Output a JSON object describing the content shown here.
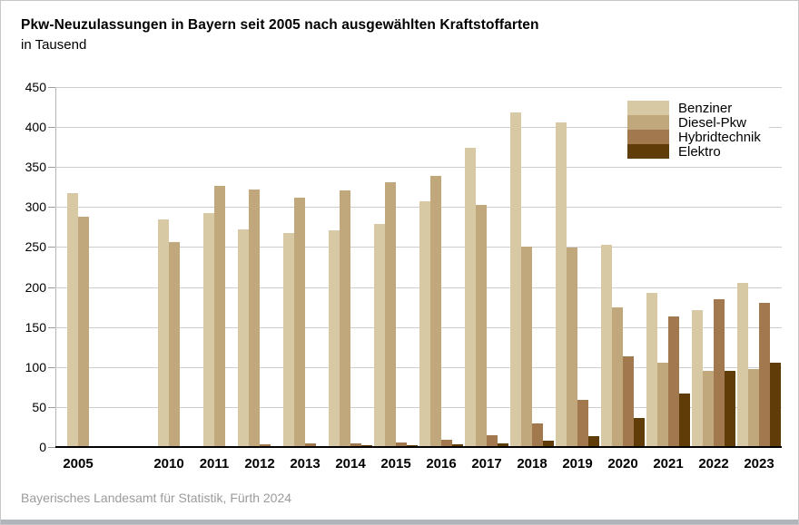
{
  "header": {
    "title": "Pkw-Neuzulassungen in Bayern seit 2005 nach ausgewählten Kraftstoffarten",
    "subtitle": "in Tausend"
  },
  "footer": {
    "source": "Bayerisches Landesamt für Statistik, Fürth 2024"
  },
  "chart_data": {
    "type": "bar",
    "title": "Pkw-Neuzulassungen in Bayern seit 2005 nach ausgewählten Kraftstoffarten",
    "subtitle": "in Tausend",
    "unit": "Tausend",
    "ylim": [
      0,
      450
    ],
    "ytick_step": 50,
    "grid": true,
    "legend_position": "top-right",
    "categories": [
      "2005",
      "2010",
      "2011",
      "2012",
      "2013",
      "2014",
      "2015",
      "2016",
      "2017",
      "2018",
      "2019",
      "2020",
      "2021",
      "2022",
      "2023"
    ],
    "category_slots": [
      0,
      2,
      3,
      4,
      5,
      6,
      7,
      8,
      9,
      10,
      11,
      12,
      13,
      14,
      15
    ],
    "total_slots": 16,
    "series": [
      {
        "name": "Benziner",
        "color": "#d6c9a3",
        "values": [
          317,
          284,
          292,
          272,
          267,
          271,
          279,
          307,
          374,
          418,
          406,
          253,
          193,
          171,
          205
        ]
      },
      {
        "name": "Diesel-Pkw",
        "color": "#c1a87c",
        "values": [
          288,
          256,
          326,
          322,
          312,
          321,
          331,
          339,
          303,
          251,
          249,
          174,
          105,
          95,
          97
        ]
      },
      {
        "name": "Hybridtechnik",
        "color": "#a2794f",
        "values": [
          0,
          0,
          0,
          3,
          4,
          5,
          6,
          9,
          15,
          29,
          59,
          113,
          163,
          185,
          180
        ]
      },
      {
        "name": "Elektro",
        "color": "#5f3c08",
        "values": [
          0,
          0,
          0,
          1,
          1,
          2,
          2,
          3,
          5,
          8,
          14,
          36,
          67,
          95,
          105
        ]
      }
    ]
  }
}
